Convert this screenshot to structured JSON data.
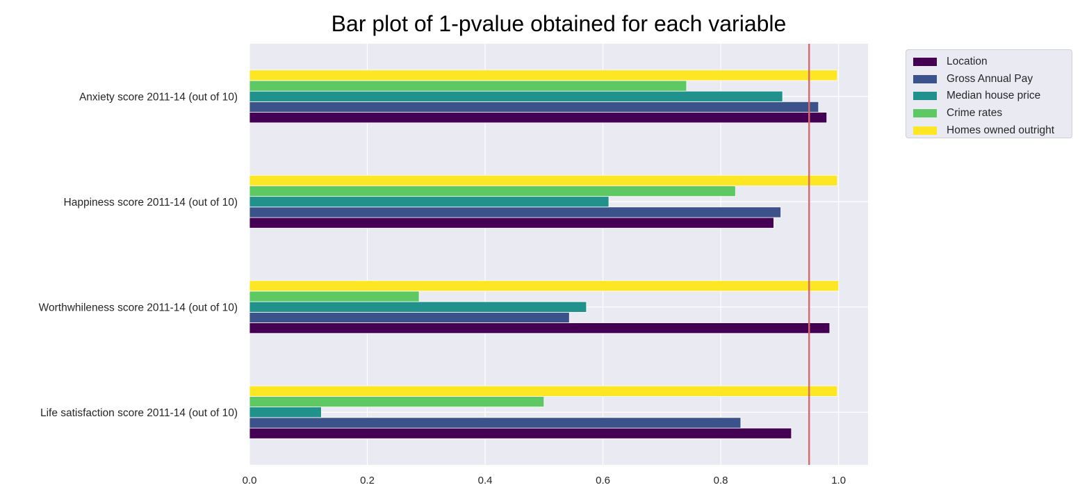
{
  "chart_data": {
    "type": "bar",
    "orientation": "horizontal",
    "title": "Bar plot of 1-pvalue obtained for each variable",
    "xlabel": "",
    "ylabel": "",
    "xlim": [
      0.0,
      1.05
    ],
    "x_ticks": [
      0.0,
      0.2,
      0.4,
      0.6,
      0.8,
      1.0
    ],
    "x_tick_labels": [
      "0.0",
      "0.2",
      "0.4",
      "0.6",
      "0.8",
      "1.0"
    ],
    "grid": true,
    "legend_position": "outside upper right",
    "categories": [
      "Anxiety score 2011-14 (out of 10)",
      "Happiness score 2011-14 (out of 10)",
      "Worthwhileness score 2011-14 (out of 10)",
      "Life satisfaction score 2011-14 (out of 10)"
    ],
    "series": [
      {
        "name": "Location",
        "color": "#440154",
        "values": [
          0.98,
          0.89,
          0.985,
          0.92
        ]
      },
      {
        "name": "Gross Annual Pay",
        "color": "#3b528b",
        "values": [
          0.966,
          0.902,
          0.543,
          0.834
        ]
      },
      {
        "name": "Median house price",
        "color": "#21918c",
        "values": [
          0.905,
          0.61,
          0.572,
          0.122
        ]
      },
      {
        "name": "Crime rates",
        "color": "#5ec962",
        "values": [
          0.742,
          0.825,
          0.288,
          0.5
        ]
      },
      {
        "name": "Homes owned outright",
        "color": "#fde725",
        "values": [
          0.998,
          0.998,
          1.0,
          0.998
        ]
      }
    ],
    "reference_line": {
      "x": 0.95,
      "color": "#d9676b"
    }
  }
}
